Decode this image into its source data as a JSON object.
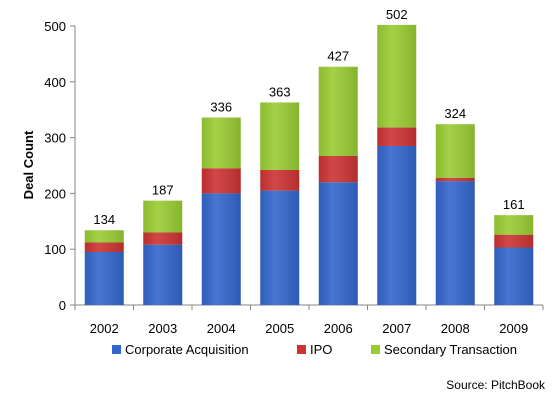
{
  "chart_data": {
    "type": "bar",
    "stacked": true,
    "categories": [
      "2002",
      "2003",
      "2004",
      "2005",
      "2006",
      "2007",
      "2008",
      "2009"
    ],
    "series": [
      {
        "name": "Corporate Acquisition",
        "values": [
          95,
          108,
          200,
          205,
          220,
          285,
          222,
          103
        ],
        "color": "#3366CC"
      },
      {
        "name": "IPO",
        "values": [
          17,
          22,
          45,
          37,
          47,
          33,
          6,
          23
        ],
        "color": "#CC3333"
      },
      {
        "name": "Secondary Transaction",
        "values": [
          22,
          57,
          91,
          121,
          160,
          184,
          96,
          35
        ],
        "color": "#99CC33"
      }
    ],
    "totals": [
      "134",
      "187",
      "336",
      "363",
      "427",
      "502",
      "324",
      "161"
    ],
    "ylabel": "Deal Count",
    "xlabel": "",
    "ylim": [
      0,
      500
    ],
    "yticks": [
      "0",
      "100",
      "200",
      "300",
      "400",
      "500"
    ],
    "grid": false,
    "legend_position": "bottom"
  },
  "source": "Source: PitchBook"
}
